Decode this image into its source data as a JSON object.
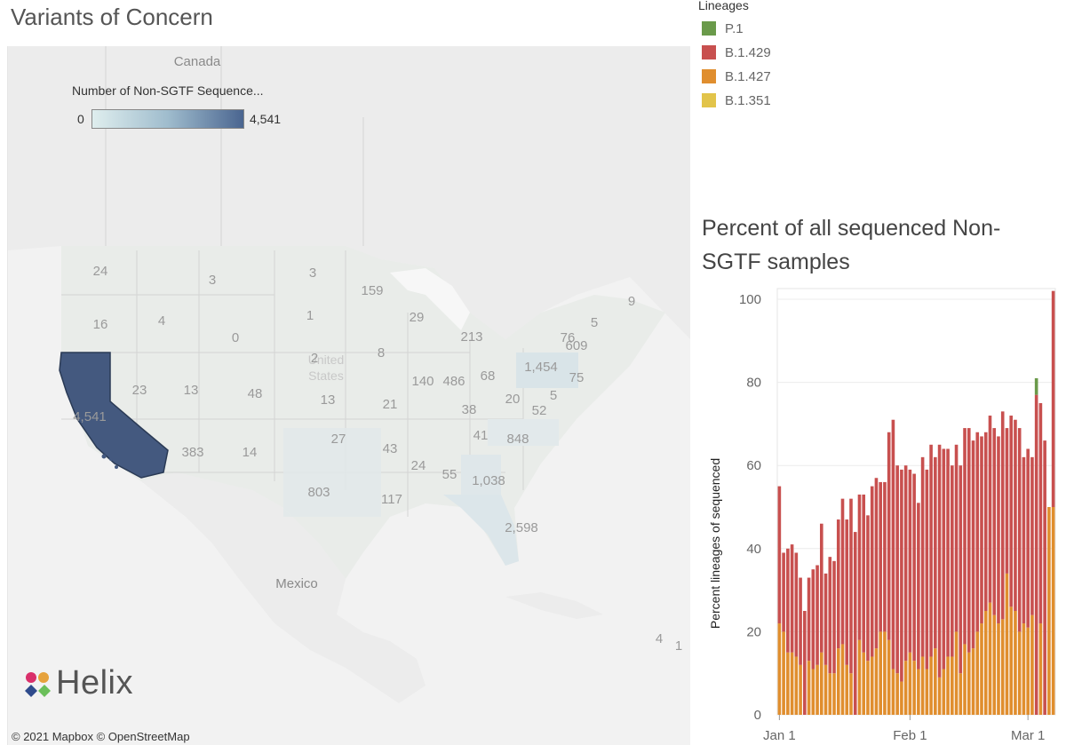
{
  "dashboard_title": "Variants of Concern",
  "map": {
    "country_labels": [
      {
        "name": "canada",
        "text": "Canada"
      },
      {
        "name": "united-states",
        "text": "United States"
      },
      {
        "name": "mexico",
        "text": "Mexico"
      }
    ],
    "color_legend": {
      "title": "Number of Non-SGTF Sequence...",
      "min": "0",
      "max": "4,541",
      "color_low": "#dfeeee",
      "color_high": "#4a6590"
    },
    "highlight_color": "#44597f",
    "state_counts": [
      {
        "state": "WA",
        "count": "24"
      },
      {
        "state": "MT",
        "count": "3"
      },
      {
        "state": "ND",
        "count": "3"
      },
      {
        "state": "MN",
        "count": "159"
      },
      {
        "state": "OR",
        "count": "16"
      },
      {
        "state": "ID",
        "count": "4"
      },
      {
        "state": "SD",
        "count": "1"
      },
      {
        "state": "WI",
        "count": "29"
      },
      {
        "state": "WY",
        "count": "0"
      },
      {
        "state": "MI",
        "count": "213"
      },
      {
        "state": "NY",
        "count": "76"
      },
      {
        "state": "MA",
        "count": "5"
      },
      {
        "state": "ME",
        "count": "9"
      },
      {
        "state": "CT",
        "count": "609"
      },
      {
        "state": "NE",
        "count": "2"
      },
      {
        "state": "IA",
        "count": "8"
      },
      {
        "state": "PA",
        "count": "1,454"
      },
      {
        "state": "NJ",
        "count": "75"
      },
      {
        "state": "CA",
        "count": "4,541"
      },
      {
        "state": "NV",
        "count": "23"
      },
      {
        "state": "UT",
        "count": "13"
      },
      {
        "state": "CO",
        "count": "48"
      },
      {
        "state": "KS",
        "count": "13"
      },
      {
        "state": "IL",
        "count": "140"
      },
      {
        "state": "IN",
        "count": "486"
      },
      {
        "state": "OH",
        "count": "68"
      },
      {
        "state": "DE",
        "count": "5"
      },
      {
        "state": "MO",
        "count": "21"
      },
      {
        "state": "KY",
        "count": "38"
      },
      {
        "state": "WV",
        "count": "20"
      },
      {
        "state": "VA",
        "count": "52"
      },
      {
        "state": "OK",
        "count": "27"
      },
      {
        "state": "TN",
        "count": "41"
      },
      {
        "state": "NC",
        "count": "848"
      },
      {
        "state": "AZ",
        "count": "383"
      },
      {
        "state": "NM",
        "count": "14"
      },
      {
        "state": "AR",
        "count": "43"
      },
      {
        "state": "MS",
        "count": "24"
      },
      {
        "state": "AL",
        "count": "55"
      },
      {
        "state": "GA",
        "count": "1,038"
      },
      {
        "state": "TX",
        "count": "803"
      },
      {
        "state": "LA",
        "count": "117"
      },
      {
        "state": "FL",
        "count": "2,598"
      },
      {
        "state": "PR",
        "count": "4"
      },
      {
        "state": "VI",
        "count": "1"
      }
    ],
    "logo_text": "Helix",
    "attribution": "© 2021 Mapbox  © OpenStreetMap"
  },
  "lineage_legend": {
    "title": "Lineages",
    "items": [
      {
        "label": "P.1",
        "color": "#6a9a4a"
      },
      {
        "label": "B.1.429",
        "color": "#c8504f"
      },
      {
        "label": "B.1.427",
        "color": "#e08e2e"
      },
      {
        "label": "B.1.351",
        "color": "#e2c44a"
      }
    ]
  },
  "chart_title": "Percent of all sequenced Non-SGTF samples",
  "chart_data": {
    "type": "bar",
    "stacked": true,
    "title": "Percent of all sequenced Non-SGTF samples",
    "ylabel": "Percent lineages of sequenced",
    "xlabel": "",
    "ylim": [
      0,
      100
    ],
    "yticks": [
      0,
      20,
      40,
      60,
      80,
      100
    ],
    "xtick_labels": [
      {
        "label": "Jan 1",
        "index": 0
      },
      {
        "label": "Feb 1",
        "index": 31
      },
      {
        "label": "Mar 1",
        "index": 59
      }
    ],
    "categories_start": "2021-01-01",
    "series": [
      {
        "name": "B.1.427",
        "color": "#e08e2e",
        "values": [
          22,
          20,
          15,
          15,
          14,
          12,
          0,
          13,
          11,
          12,
          15,
          12,
          10,
          10,
          16,
          17,
          12,
          10,
          0,
          18,
          15,
          13,
          14,
          16,
          20,
          20,
          18,
          11,
          10,
          8,
          13,
          15,
          13,
          11,
          14,
          11,
          14,
          16,
          9,
          11,
          14,
          14,
          20,
          10,
          17,
          15,
          16,
          20,
          22,
          25,
          27,
          24,
          22,
          23,
          34,
          26,
          25,
          20,
          22,
          21,
          24,
          0,
          22,
          0,
          50,
          50
        ]
      },
      {
        "name": "B.1.429",
        "color": "#c8504f",
        "values": [
          33,
          19,
          25,
          26,
          25,
          21,
          25,
          20,
          24,
          24,
          31,
          22,
          28,
          27,
          31,
          35,
          35,
          42,
          44,
          35,
          38,
          35,
          41,
          41,
          36,
          36,
          50,
          60,
          50,
          51,
          47,
          44,
          45,
          40,
          48,
          48,
          51,
          46,
          56,
          53,
          50,
          46,
          45,
          50,
          52,
          54,
          50,
          48,
          45,
          43,
          45,
          45,
          45,
          50,
          35,
          46,
          46,
          49,
          40,
          43,
          38,
          77,
          53,
          66,
          0,
          52
        ]
      },
      {
        "name": "P.1",
        "color": "#6a9a4a",
        "values": [
          0,
          0,
          0,
          0,
          0,
          0,
          0,
          0,
          0,
          0,
          0,
          0,
          0,
          0,
          0,
          0,
          0,
          0,
          0,
          0,
          0,
          0,
          0,
          0,
          0,
          0,
          0,
          0,
          0,
          0,
          0,
          0,
          0,
          0,
          0,
          0,
          0,
          0,
          0,
          0,
          0,
          0,
          0,
          0,
          0,
          0,
          0,
          0,
          0,
          0,
          0,
          0,
          0,
          0,
          0,
          0,
          0,
          0,
          0,
          0,
          0,
          4,
          0,
          0,
          0,
          0
        ]
      },
      {
        "name": "B.1.351",
        "color": "#e2c44a",
        "values": [
          0,
          0,
          0,
          0,
          0,
          0,
          0,
          0,
          0,
          0,
          0,
          0,
          0,
          0,
          0,
          0,
          0,
          0,
          0,
          0,
          0,
          0,
          0,
          0,
          0,
          0,
          0,
          0,
          0,
          0,
          0,
          0,
          0,
          0,
          0,
          0,
          0,
          0,
          0,
          0,
          0,
          0,
          0,
          0,
          0,
          0,
          0,
          0,
          0,
          0,
          0,
          0,
          0,
          0,
          0,
          0,
          0,
          0,
          0,
          0,
          0,
          0,
          0,
          0,
          0,
          0
        ]
      }
    ]
  }
}
